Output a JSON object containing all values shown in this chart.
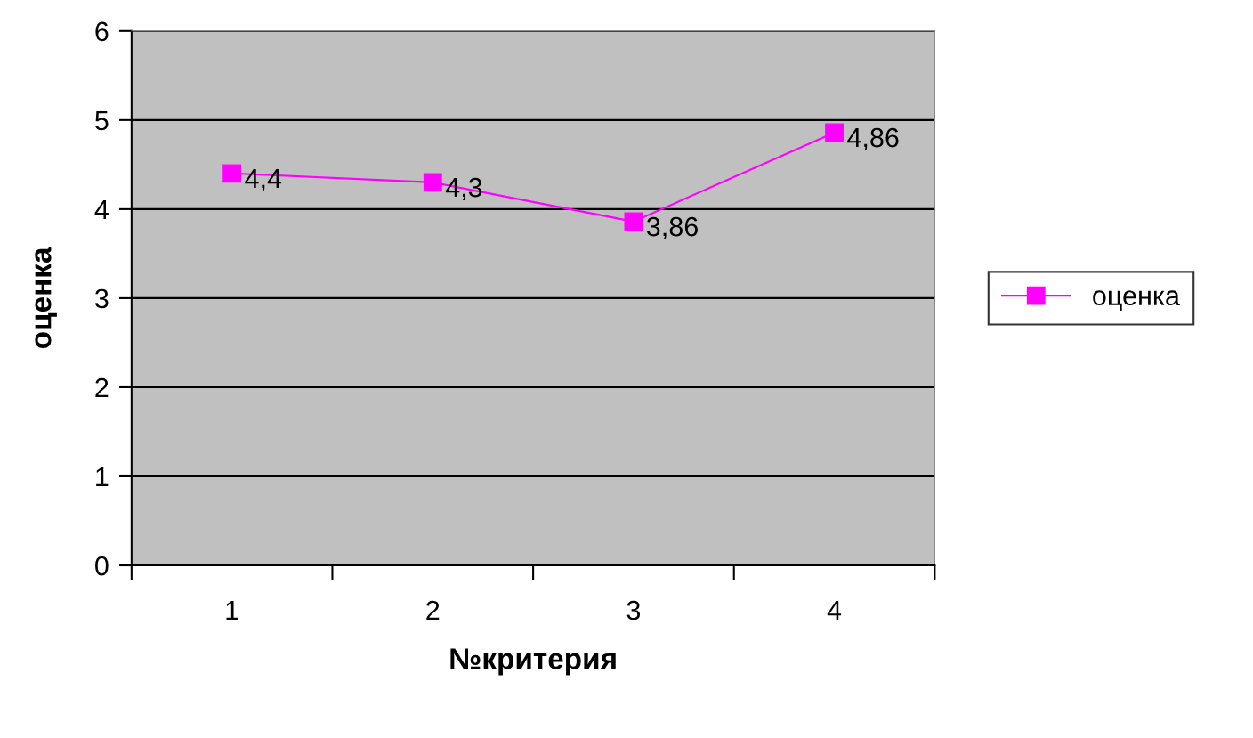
{
  "chart_data": {
    "type": "line",
    "xlabel": "№критерия",
    "ylabel": "оценка",
    "categories": [
      "1",
      "2",
      "3",
      "4"
    ],
    "series": [
      {
        "name": "оценка",
        "color": "#ff00ff",
        "values": [
          4.4,
          4.3,
          3.86,
          4.86
        ],
        "value_labels": [
          "4,4",
          "4,3",
          "3,86",
          "4,86"
        ]
      }
    ],
    "ylim": [
      0,
      6
    ],
    "yticks": [
      0,
      1,
      2,
      3,
      4,
      5,
      6
    ],
    "grid": "y",
    "legend": "right",
    "marker": "square",
    "line_style": "solid"
  }
}
